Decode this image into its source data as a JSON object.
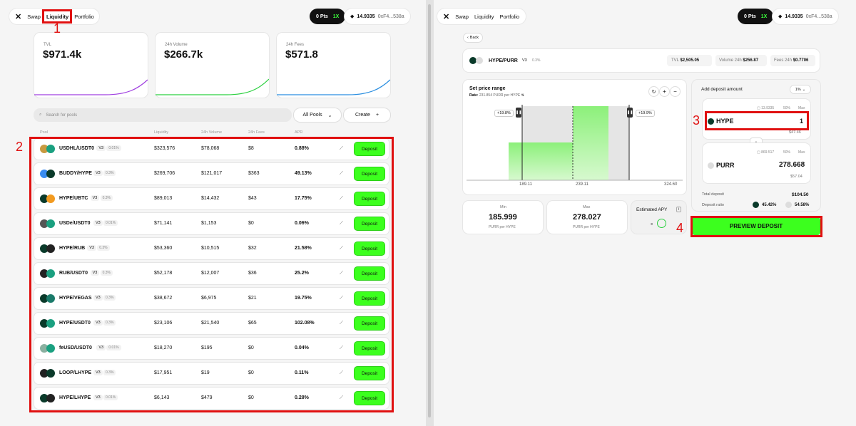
{
  "nav": {
    "swap": "Swap",
    "liquidity": "Liquidity",
    "portfolio": "Portfolio",
    "pts": "0 Pts",
    "mult": "1X",
    "balance": "14.9335",
    "address": "0xF4...538a"
  },
  "stats": [
    {
      "label": "TVL",
      "value": "$971.4k",
      "color": "#a040e0"
    },
    {
      "label": "24h Volume",
      "value": "$266.7k",
      "color": "#2cd040"
    },
    {
      "label": "24h Fees",
      "value": "$571.8",
      "color": "#2a8ee0"
    }
  ],
  "search": {
    "placeholder": "Search for pools",
    "all_pools": "All Pools",
    "create": "Create"
  },
  "table_headers": {
    "pool": "Pool",
    "liquidity": "Liquidity",
    "volume": "24h Volume",
    "fees": "24h Fees",
    "apr": "APR"
  },
  "pools": [
    {
      "name": "USDHL/USDT0",
      "v": "V3",
      "fee": "0.01%",
      "liq": "$323,576",
      "vol": "$78,068",
      "fees": "$8",
      "apr": "0.88%",
      "c1": "#c89a40",
      "c2": "#1aa080"
    },
    {
      "name": "BUDDY/HYPE",
      "v": "V3",
      "fee": "0.3%",
      "liq": "$269,706",
      "vol": "$121,017",
      "fees": "$363",
      "apr": "49.13%",
      "c1": "#3a8cf0",
      "c2": "#0a3a2a"
    },
    {
      "name": "HYPE/UBTC",
      "v": "V3",
      "fee": "0.3%",
      "liq": "$89,013",
      "vol": "$14,432",
      "fees": "$43",
      "apr": "17.75%",
      "c1": "#0a3a2a",
      "c2": "#f29a20"
    },
    {
      "name": "USDe/USDT0",
      "v": "V3",
      "fee": "0.01%",
      "liq": "$71,141",
      "vol": "$1,153",
      "fees": "$0",
      "apr": "0.06%",
      "c1": "#555",
      "c2": "#1aa080"
    },
    {
      "name": "HYPE/RUB",
      "v": "V3",
      "fee": "0.3%",
      "liq": "$53,360",
      "vol": "$10,515",
      "fees": "$32",
      "apr": "21.58%",
      "c1": "#0a3a2a",
      "c2": "#222"
    },
    {
      "name": "RUB/USDT0",
      "v": "V3",
      "fee": "0.3%",
      "liq": "$52,178",
      "vol": "$12,007",
      "fees": "$36",
      "apr": "25.2%",
      "c1": "#222",
      "c2": "#1aa080"
    },
    {
      "name": "HYPE/VEGAS",
      "v": "V3",
      "fee": "0.3%",
      "liq": "$38,672",
      "vol": "$6,975",
      "fees": "$21",
      "apr": "19.75%",
      "c1": "#0a3a2a",
      "c2": "#1a7a6a"
    },
    {
      "name": "HYPE/USDT0",
      "v": "V3",
      "fee": "0.3%",
      "liq": "$23,106",
      "vol": "$21,540",
      "fees": "$65",
      "apr": "102.08%",
      "c1": "#0a3a2a",
      "c2": "#1aa080"
    },
    {
      "name": "feUSD/USDT0",
      "v": "V3",
      "fee": "0.01%",
      "liq": "$18,270",
      "vol": "$195",
      "fees": "$0",
      "apr": "0.04%",
      "c1": "#8ab0a0",
      "c2": "#1aa080"
    },
    {
      "name": "LOOP/LHYPE",
      "v": "V3",
      "fee": "0.3%",
      "liq": "$17,951",
      "vol": "$19",
      "fees": "$0",
      "apr": "0.11%",
      "c1": "#222",
      "c2": "#0a3a2a"
    },
    {
      "name": "HYPE/LHYPE",
      "v": "V3",
      "fee": "0.01%",
      "liq": "$6,143",
      "vol": "$479",
      "fees": "$0",
      "apr": "0.28%",
      "c1": "#0a3a2a",
      "c2": "#222"
    }
  ],
  "deposit_label": "Deposit",
  "annotations": {
    "a1": "1",
    "a2": "2",
    "a3": "3",
    "a4": "4"
  },
  "right": {
    "back": "Back",
    "pair": "HYPE/PURR",
    "v": "V3",
    "fee": "0.3%",
    "tvl_label": "TVL",
    "tvl": "$2,505.05",
    "vol_label": "Volume 24h",
    "vol": "$256.87",
    "fees_label": "Fees 24h",
    "fees": "$0.7706",
    "price_range": "Set price range",
    "rate_label": "Rate:",
    "rate": "231.854 PURR per HYPE",
    "left_pct": "+19.8%",
    "right_pct": "+19.9%",
    "axis": [
      "189.11",
      "239.11",
      "324.60"
    ],
    "min_label": "Min",
    "min_val": "185.999",
    "min_unit": "PURR per HYPE",
    "max_label": "Max",
    "max_val": "278.027",
    "max_unit": "PURR per HYPE",
    "apy_label": "Estimated APY",
    "apy_val": "-",
    "add_deposit": "Add deposit amount",
    "slippage": "1%",
    "hype_bal": "13.9335",
    "hype_50": "50%",
    "hype_max": "Max",
    "hype_token": "HYPE",
    "hype_amt": "1",
    "hype_usd": "$47.46",
    "purr_bal": "869.517",
    "purr_50": "50%",
    "purr_max": "Max",
    "purr_token": "PURR",
    "purr_amt": "278.668",
    "purr_usd": "$57.04",
    "total_label": "Total deposit",
    "total": "$104.50",
    "ratio_label": "Deposit ratio",
    "ratio_hype": "45.42%",
    "ratio_purr": "54.58%",
    "preview": "PREVIEW DEPOSIT"
  }
}
